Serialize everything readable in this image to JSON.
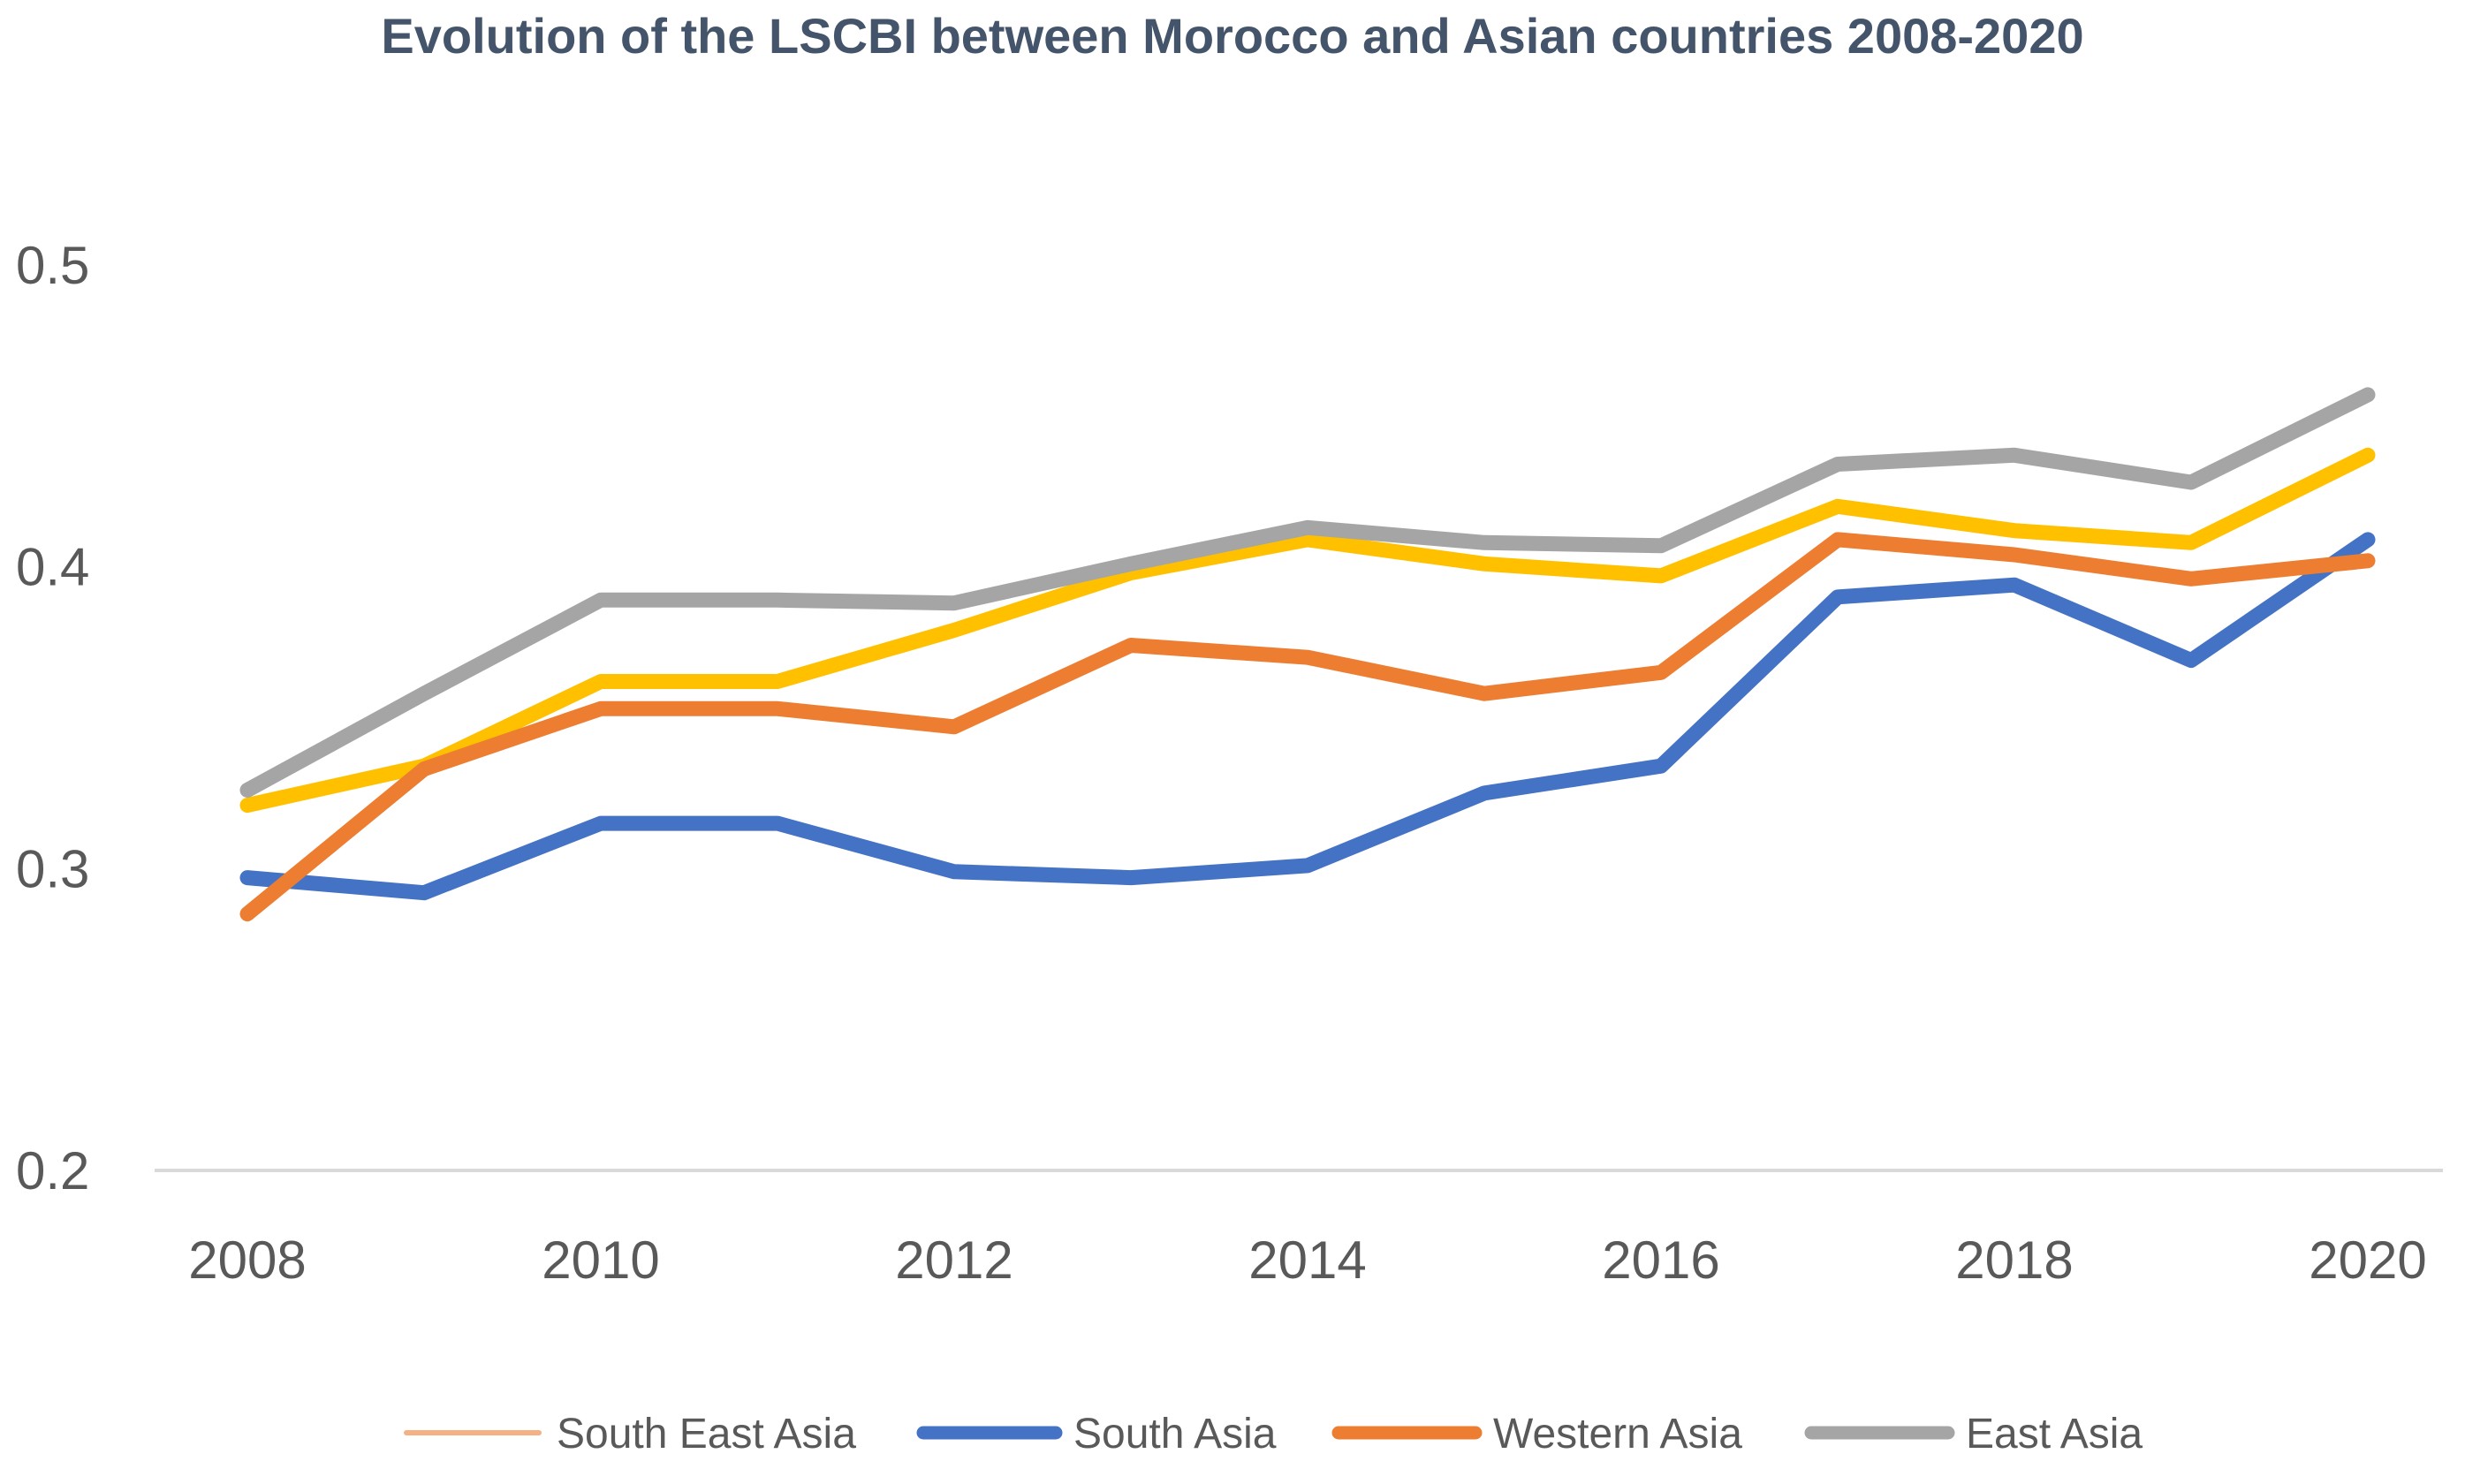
{
  "chart_data": {
    "type": "line",
    "title": "Evolution of the LSCBI between Morocco and Asian countries 2008-2020",
    "xlabel": "",
    "ylabel": "",
    "x": [
      2008,
      2009,
      2010,
      2011,
      2012,
      2013,
      2014,
      2015,
      2016,
      2017,
      2018,
      2019,
      2020
    ],
    "x_tick_labels": [
      "2008",
      "2010",
      "2012",
      "2014",
      "2016",
      "2018",
      "2020"
    ],
    "x_tick_values": [
      2008,
      2010,
      2012,
      2014,
      2016,
      2018,
      2020
    ],
    "y_tick_labels": [
      "0.2",
      "0.3",
      "0.4",
      "0.5"
    ],
    "y_tick_values": [
      0.2,
      0.3,
      0.4,
      0.5
    ],
    "ylim": [
      0.2,
      0.5
    ],
    "grid": false,
    "legend_position": "bottom",
    "series": [
      {
        "name": "South East Asia",
        "color": "#ffc000",
        "legend_color": "#f4b183",
        "values": [
          0.321,
          0.334,
          0.362,
          0.362,
          0.379,
          0.398,
          0.409,
          0.401,
          0.397,
          0.42,
          0.412,
          0.408,
          0.437
        ]
      },
      {
        "name": "South Asia",
        "color": "#4472c4",
        "legend_color": "#4472c4",
        "values": [
          0.297,
          0.292,
          0.315,
          0.315,
          0.299,
          0.297,
          0.301,
          0.325,
          0.334,
          0.39,
          0.394,
          0.369,
          0.409
        ]
      },
      {
        "name": "Western Asia",
        "color": "#ed7d31",
        "legend_color": "#ed7d31",
        "values": [
          0.285,
          0.333,
          0.353,
          0.353,
          0.347,
          0.374,
          0.37,
          0.358,
          0.365,
          0.409,
          0.404,
          0.396,
          0.402
        ]
      },
      {
        "name": "East Asia",
        "color": "#a5a5a5",
        "legend_color": "#a5a5a5",
        "values": [
          0.326,
          0.358,
          0.389,
          0.389,
          0.388,
          0.401,
          0.413,
          0.408,
          0.407,
          0.434,
          0.437,
          0.428,
          0.457
        ]
      }
    ]
  }
}
